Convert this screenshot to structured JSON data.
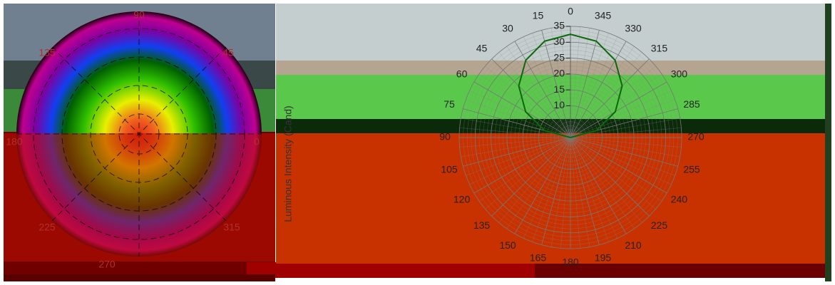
{
  "heatmap": {
    "angle_labels": [
      "90",
      "135",
      "45",
      "180",
      "0",
      "225",
      "315",
      "270"
    ]
  },
  "chart_data": {
    "type": "polar",
    "y_label": "Luminous Intensity (Cand)",
    "theta": [
      0,
      15,
      30,
      45,
      60,
      75,
      90,
      105,
      120,
      135,
      150,
      165,
      180,
      195,
      210,
      225,
      240,
      255,
      270,
      285,
      300,
      315,
      330,
      345
    ],
    "rlim": [
      0,
      35
    ],
    "rticks": [
      10,
      15,
      20,
      25,
      30,
      35
    ],
    "grid": true,
    "series": [
      {
        "color": "#0a6a0a",
        "values": [
          32.5,
          31.4,
          28.1,
          23.0,
          16.3,
          8.4,
          0,
          0,
          0,
          0,
          0,
          0,
          0,
          0,
          0,
          0,
          0,
          0,
          0,
          8.4,
          16.3,
          23.0,
          28.1,
          31.4
        ]
      }
    ]
  }
}
